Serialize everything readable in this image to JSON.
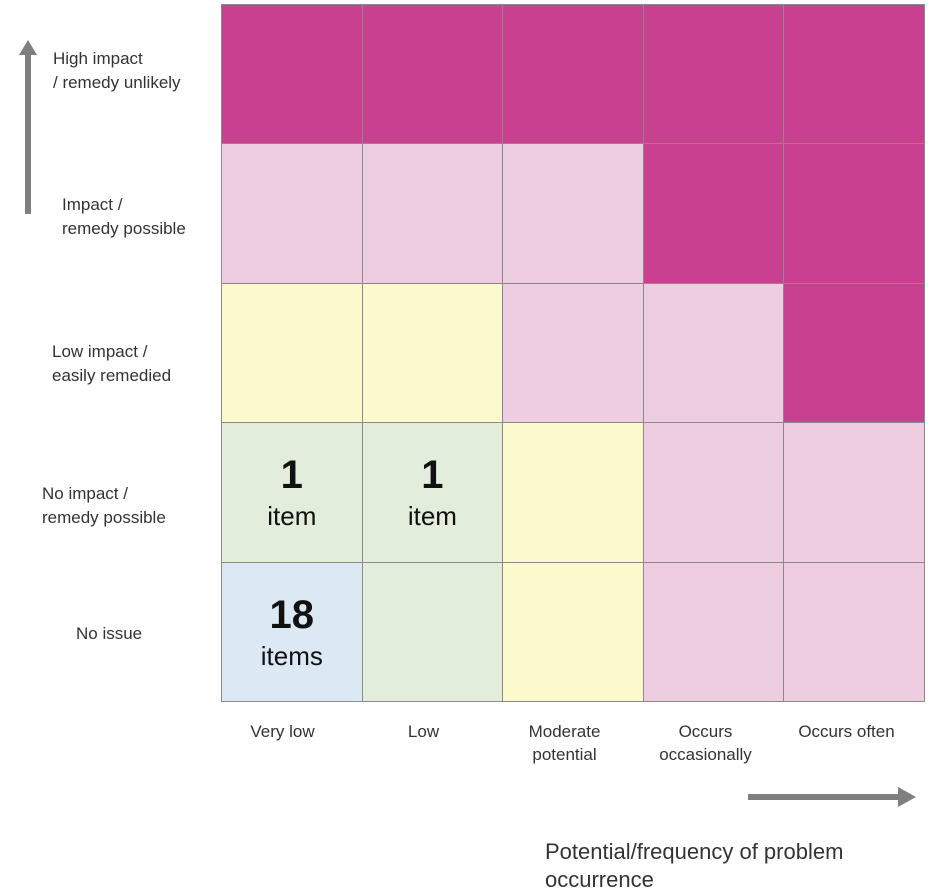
{
  "chart_data": {
    "type": "heatmap",
    "rows": [
      "High impact\n/ remedy unlikely",
      "Impact /\nremedy possible",
      "Low impact /\neasily remedied",
      "No impact /\nremedy possible",
      "No issue"
    ],
    "columns": [
      "Very low",
      "Low",
      "Moderate\npotential",
      "Occurs\noccasionally",
      "Occurs often"
    ],
    "cell_levels": [
      [
        "high",
        "high",
        "high",
        "high",
        "high"
      ],
      [
        "medium",
        "medium",
        "medium",
        "high",
        "high"
      ],
      [
        "low",
        "low",
        "medium",
        "medium",
        "high"
      ],
      [
        "minimal",
        "minimal",
        "low",
        "medium",
        "medium"
      ],
      [
        "none",
        "minimal",
        "low",
        "medium",
        "medium"
      ]
    ],
    "level_colors": {
      "high": "#c8408f",
      "medium": "#efcde1",
      "low": "#fcfacd",
      "minimal": "#e2eddb",
      "none": "#dce8f4"
    },
    "annotations": [
      {
        "row": 3,
        "col": 0,
        "count": "1",
        "unit": "item"
      },
      {
        "row": 3,
        "col": 1,
        "count": "1",
        "unit": "item"
      },
      {
        "row": 4,
        "col": 0,
        "count": "18",
        "unit": "items"
      }
    ],
    "xlabel": "Potential/frequency of problem occurrence",
    "ylabel": "",
    "arrow_color": "#7f7f7f"
  }
}
